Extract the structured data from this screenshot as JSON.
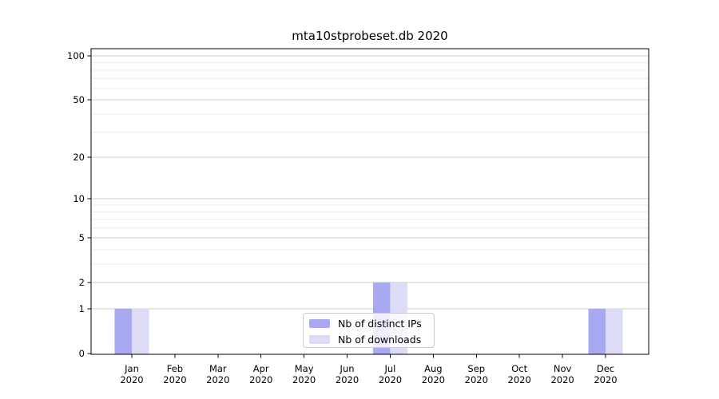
{
  "chart_data": {
    "type": "bar",
    "title": "mta10stprobeset.db 2020",
    "x_tick_year": "2020",
    "categories": [
      "Jan",
      "Feb",
      "Mar",
      "Apr",
      "May",
      "Jun",
      "Jul",
      "Aug",
      "Sep",
      "Oct",
      "Nov",
      "Dec"
    ],
    "series": [
      {
        "name": "Nb of distinct IPs",
        "color": "#a9a9f1",
        "values": [
          1,
          0,
          0,
          0,
          0,
          0,
          2,
          0,
          0,
          0,
          0,
          1
        ]
      },
      {
        "name": "Nb of downloads",
        "color": "#dcdcf7",
        "values": [
          1,
          0,
          0,
          0,
          0,
          0,
          2,
          0,
          0,
          0,
          0,
          1
        ]
      }
    ],
    "y_scale": "log1p",
    "y_ticks": [
      0,
      1,
      2,
      5,
      10,
      20,
      50,
      100
    ],
    "y_minor_gridlines": [
      3,
      4,
      6,
      7,
      8,
      9,
      30,
      40,
      60,
      70,
      80,
      90
    ],
    "ylim": [
      0,
      112
    ],
    "grid": true,
    "legend_position": "lower center",
    "colors": {
      "major_grid": "#cccccc",
      "minor_grid": "#ececec",
      "axis": "#000000"
    }
  }
}
